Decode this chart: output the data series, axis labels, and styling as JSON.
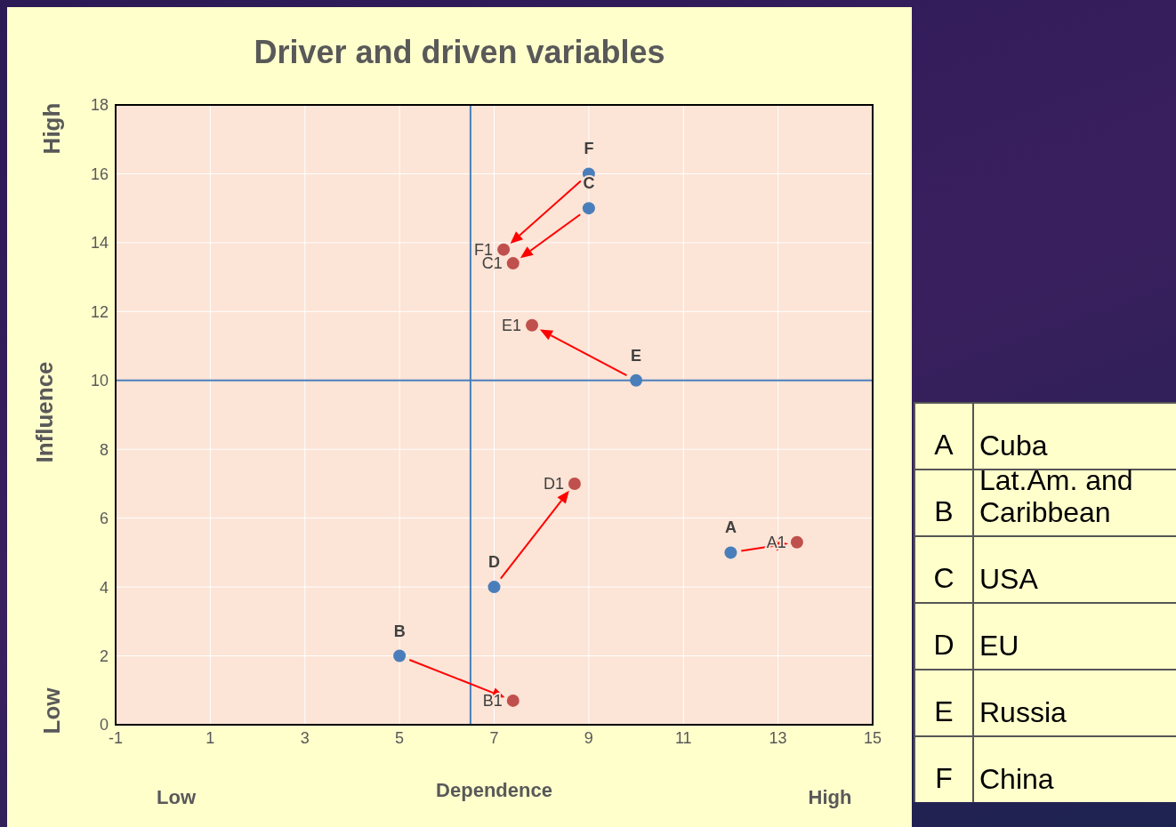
{
  "chart_data": [
    {
      "type": "scatter",
      "title": "Driver and driven variables",
      "xlabel": "Dependence",
      "ylabel": "Influence",
      "xlim": [
        -1,
        15
      ],
      "xticks": [
        -1,
        1,
        3,
        5,
        7,
        9,
        11,
        13,
        15
      ],
      "ylim": [
        0,
        18
      ],
      "yticks": [
        0,
        2,
        4,
        6,
        8,
        10,
        12,
        14,
        16,
        18
      ],
      "grid": true,
      "marker": "circle",
      "series": [
        {
          "color": "#4a7ebb",
          "x": [
            12,
            5,
            9,
            7,
            10,
            9
          ],
          "values": [
            5,
            2,
            15,
            4,
            10,
            16
          ]
        },
        {
          "color": "#c0504d",
          "x": [
            13.4,
            7.4,
            7.4,
            8.7,
            7.8,
            7.2
          ],
          "values": [
            5.3,
            0.7,
            13.4,
            7,
            11.6,
            13.8
          ]
        }
      ],
      "ref_lines": [
        {
          "axis": "x",
          "value": 6.5,
          "color": "#4a7ebb"
        },
        {
          "axis": "y",
          "value": 10,
          "color": "#4a7ebb"
        }
      ],
      "annotations": [
        "Low",
        "High",
        "Low",
        "High",
        {
          "text": "A",
          "x": 12,
          "y": 5
        },
        {
          "text": "B",
          "x": 5,
          "y": 2
        },
        {
          "text": "C",
          "x": 9,
          "y": 15
        },
        {
          "text": "D",
          "x": 7,
          "y": 4
        },
        {
          "text": "E",
          "x": 10,
          "y": 10
        },
        {
          "text": "F",
          "x": 9,
          "y": 16
        },
        {
          "text": "A1",
          "x": 13.4,
          "y": 5.3
        },
        {
          "text": "B1",
          "x": 7.4,
          "y": 0.7
        },
        {
          "text": "C1",
          "x": 7.4,
          "y": 13.4
        },
        {
          "text": "D1",
          "x": 8.7,
          "y": 7
        },
        {
          "text": "E1",
          "x": 7.8,
          "y": 11.6
        },
        {
          "text": "F1",
          "x": 7.2,
          "y": 13.8
        }
      ]
    },
    {
      "type": "other",
      "annotations": [
        "A",
        "Cuba",
        "B",
        "Lat.Am. and Caribbean",
        "C",
        "USA",
        "D",
        "EU",
        "E",
        "Russia",
        "F",
        "China"
      ]
    }
  ]
}
